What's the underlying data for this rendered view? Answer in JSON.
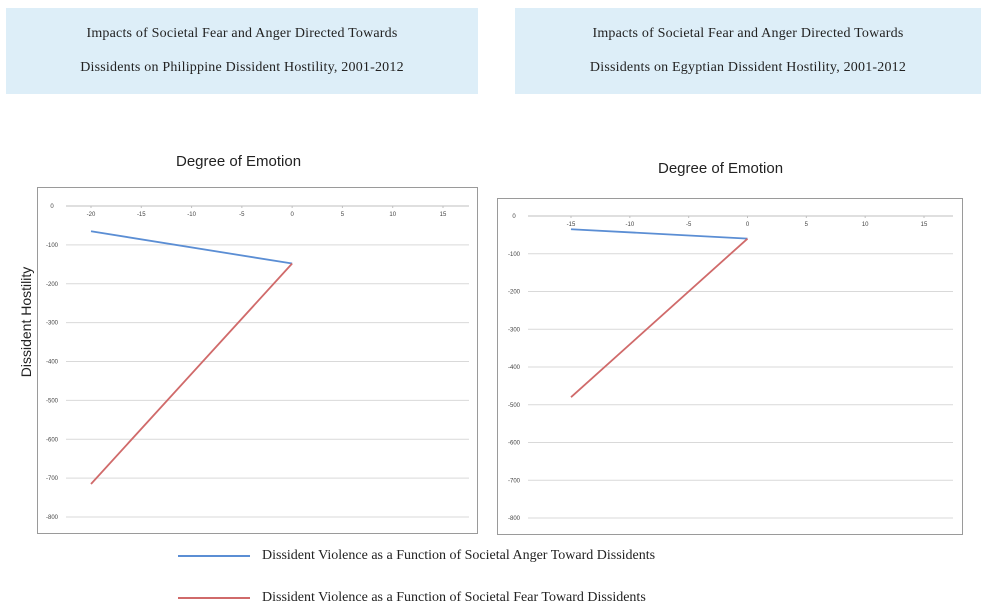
{
  "titles": {
    "left": {
      "line1": "Impacts of Societal Fear and Anger Directed Towards",
      "line2": "Dissidents on Philippine Dissident Hostility, 2001-2012"
    },
    "right": {
      "line1": "Impacts of Societal Fear and Anger Directed Towards",
      "line2": "Dissidents on Egyptian Dissident Hostility, 2001-2012"
    }
  },
  "ylabel": "Dissident Hostility",
  "legend": {
    "anger": "Dissident Violence as a Function of Societal Anger Toward Dissidents",
    "fear": "Dissident Violence as a Function of Societal Fear Toward Dissidents"
  },
  "colors": {
    "anger": "#5b8ed4",
    "fear": "#d06a6a",
    "grid": "#d9d9d9"
  },
  "chart_data": [
    {
      "type": "line",
      "title": "Degree of Emotion",
      "ylabel": "Dissident Hostility",
      "x_ticks": [
        -20,
        -15,
        -10,
        -5,
        0,
        5,
        10,
        15
      ],
      "y_ticks": [
        0,
        -100,
        -200,
        -300,
        -400,
        -500,
        -600,
        -700,
        -800
      ],
      "xlim": [
        -20,
        15
      ],
      "ylim": [
        -800,
        0
      ],
      "grid": true,
      "legend_position": "bottom",
      "series": [
        {
          "name": "Dissident Violence as a Function of Societal Anger Toward Dissidents",
          "color": "anger",
          "points": [
            [
              -20,
              -65
            ],
            [
              0,
              -148
            ]
          ]
        },
        {
          "name": "Dissident Violence as a Function of Societal Fear Toward Dissidents",
          "color": "fear",
          "points": [
            [
              -20,
              -715
            ],
            [
              0,
              -148
            ]
          ]
        }
      ]
    },
    {
      "type": "line",
      "title": "Degree of Emotion",
      "ylabel": "",
      "x_ticks": [
        -15,
        -10,
        -5,
        0,
        5,
        10,
        15
      ],
      "y_ticks": [
        0,
        -100,
        -200,
        -300,
        -400,
        -500,
        -600,
        -700,
        -800
      ],
      "xlim": [
        -15,
        15
      ],
      "ylim": [
        -800,
        0
      ],
      "grid": true,
      "legend_position": "bottom",
      "series": [
        {
          "name": "Dissident Violence as a Function of Societal Anger Toward Dissidents",
          "color": "anger",
          "points": [
            [
              -15,
              -35
            ],
            [
              0,
              -60
            ]
          ]
        },
        {
          "name": "Dissident Violence as a Function of Societal Fear Toward Dissidents",
          "color": "fear",
          "points": [
            [
              -15,
              -480
            ],
            [
              0,
              -60
            ]
          ]
        }
      ]
    }
  ]
}
